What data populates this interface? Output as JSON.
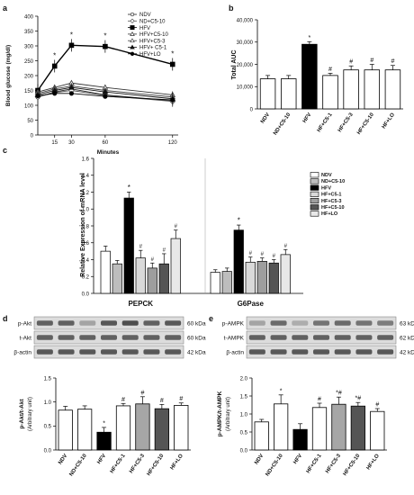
{
  "panel_letters": [
    "a",
    "b",
    "c",
    "d",
    "e"
  ],
  "markers": {
    "star": "*",
    "hash": "#"
  },
  "chart_data": [
    {
      "id": "a",
      "type": "line",
      "xlabel": "Minutes",
      "ylabel": "Blood  glucose  (mg/dl)",
      "x": [
        0,
        15,
        30,
        60,
        120
      ],
      "xticks": [
        "15",
        "30",
        "60",
        "120"
      ],
      "ylim": [
        0,
        400
      ],
      "yticks": [
        "0",
        "50",
        "100",
        "150",
        "200",
        "250",
        "300",
        "350",
        "400"
      ],
      "series": [
        {
          "name": "NDV",
          "values": [
            128,
            145,
            155,
            135,
            115
          ],
          "marker": "circle-open",
          "color": "#222222"
        },
        {
          "name": "ND+C5-10",
          "values": [
            128,
            143,
            150,
            133,
            113
          ],
          "marker": "diamond-open",
          "color": "#555555"
        },
        {
          "name": "HFV",
          "values": [
            150,
            232,
            302,
            298,
            238
          ],
          "marker": "square-filled",
          "color": "#000000",
          "stars": [
            1,
            2,
            3,
            4
          ]
        },
        {
          "name": "HFV+C5-10",
          "values": [
            145,
            160,
            175,
            160,
            135
          ],
          "marker": "triangle-open",
          "color": "#333333"
        },
        {
          "name": "HFV+C5-3",
          "values": [
            140,
            155,
            165,
            150,
            128
          ],
          "marker": "triangle-open",
          "color": "#444444"
        },
        {
          "name": "HFV+ C5-1",
          "values": [
            135,
            150,
            160,
            145,
            122
          ],
          "marker": "triangle-filled",
          "color": "#111111"
        },
        {
          "name": "HFV+LO",
          "values": [
            132,
            140,
            140,
            130,
            118
          ],
          "marker": "circle-filled",
          "color": "#000000"
        }
      ]
    },
    {
      "id": "b",
      "type": "bar",
      "ylabel": "Total AUC",
      "ylim": [
        0,
        40000
      ],
      "yticks": [
        "0",
        "10,000",
        "20,000",
        "30,000",
        "40,000"
      ],
      "categories": [
        "NDV",
        "ND+C5-10",
        "HFV",
        "HF+C5-1",
        "HF+C5-3",
        "HF+C5-10",
        "HF+LO"
      ],
      "values": [
        13500,
        13500,
        29000,
        15000,
        17500,
        17500,
        17500
      ],
      "errors": [
        1500,
        1500,
        1200,
        1000,
        1800,
        2500,
        2000
      ],
      "fills": [
        "#ffffff",
        "#ffffff",
        "#000000",
        "#ffffff",
        "#ffffff",
        "#ffffff",
        "#ffffff"
      ],
      "marks": [
        "",
        "",
        "*",
        "#",
        "#",
        "#",
        "#"
      ]
    },
    {
      "id": "c",
      "type": "bar",
      "ylabel": "Relative Expression of mRNA level",
      "ylim": [
        0,
        1.6
      ],
      "yticks": [
        "0.0",
        "0.2",
        "0.4",
        "0.6",
        "0.8",
        "1.0",
        "1.2",
        "1.4",
        "1.6"
      ],
      "groups": [
        "PEPCK",
        "G6Pase"
      ],
      "legend": [
        "NDV",
        "ND+C5-10",
        "HFV",
        "HF+C5-1",
        "HF+C5-3",
        "HF+C5-10",
        "HF+LO"
      ],
      "fills": [
        "#ffffff",
        "#bdbdbd",
        "#000000",
        "#d9d9d9",
        "#9e9e9e",
        "#555555",
        "#e8e8e8"
      ],
      "series": [
        {
          "name": "NDV",
          "values": [
            0.5,
            0.25
          ],
          "errors": [
            0.06,
            0.03
          ],
          "marks": [
            "",
            ""
          ]
        },
        {
          "name": "ND+C5-10",
          "values": [
            0.35,
            0.26
          ],
          "errors": [
            0.04,
            0.04
          ],
          "marks": [
            "",
            ""
          ]
        },
        {
          "name": "HFV",
          "values": [
            1.13,
            0.75
          ],
          "errors": [
            0.07,
            0.06
          ],
          "marks": [
            "*",
            "*"
          ]
        },
        {
          "name": "HF+C5-1",
          "values": [
            0.42,
            0.37
          ],
          "errors": [
            0.09,
            0.06
          ],
          "marks": [
            "#",
            "#"
          ]
        },
        {
          "name": "HF+C5-3",
          "values": [
            0.3,
            0.38
          ],
          "errors": [
            0.06,
            0.04
          ],
          "marks": [
            "#",
            "#"
          ]
        },
        {
          "name": "HF+C5-10",
          "values": [
            0.35,
            0.36
          ],
          "errors": [
            0.12,
            0.04
          ],
          "marks": [
            "#",
            "#"
          ]
        },
        {
          "name": "HF+LO",
          "values": [
            0.65,
            0.46
          ],
          "errors": [
            0.1,
            0.06
          ],
          "marks": [
            "#",
            "#"
          ]
        }
      ]
    },
    {
      "id": "d",
      "type": "bar",
      "ylabel": "p-Akt/t-Akt",
      "ylabel2": "(Arbitrary unit)",
      "ylim": [
        0,
        1.5
      ],
      "yticks": [
        "0.0",
        "0.5",
        "1.0",
        "1.5"
      ],
      "categories": [
        "NDV",
        "ND+C5-10",
        "HFV",
        "HF+C5-1",
        "HF+C5-3",
        "HF+C5-10",
        "HF+LO"
      ],
      "values": [
        0.83,
        0.85,
        0.37,
        0.92,
        0.96,
        0.86,
        0.93
      ],
      "errors": [
        0.08,
        0.07,
        0.1,
        0.05,
        0.15,
        0.09,
        0.05
      ],
      "fills": [
        "#ffffff",
        "#ffffff",
        "#000000",
        "#ffffff",
        "#a6a6a6",
        "#555555",
        "#ffffff"
      ],
      "marks": [
        "",
        "",
        "*",
        "#",
        "#",
        "#",
        "#"
      ],
      "blot": {
        "rows": [
          "p-Akt",
          "t-Akt",
          "β-actin"
        ],
        "sizes": [
          "60 kDa",
          "60 kDa",
          "42 kDa"
        ]
      }
    },
    {
      "id": "e",
      "type": "bar",
      "ylabel": "p-AMPK/t-AMPK",
      "ylabel2": "(Arbitrary unit)",
      "ylim": [
        0,
        2.0
      ],
      "yticks": [
        "0.0",
        "0.5",
        "1.0",
        "1.5",
        "2.0"
      ],
      "categories": [
        "NDV",
        "ND+C5-10",
        "HFV",
        "HF+C5-1",
        "HF+C5-3",
        "HF+C5-10",
        "HF+LO"
      ],
      "values": [
        0.78,
        1.28,
        0.57,
        1.18,
        1.27,
        1.22,
        1.07
      ],
      "errors": [
        0.07,
        0.25,
        0.16,
        0.12,
        0.2,
        0.1,
        0.08
      ],
      "fills": [
        "#ffffff",
        "#ffffff",
        "#000000",
        "#ffffff",
        "#a6a6a6",
        "#555555",
        "#ffffff"
      ],
      "marks": [
        "",
        "*",
        "",
        "#",
        "*#",
        "*#",
        "#"
      ],
      "blot": {
        "rows": [
          "p-AMPK",
          "t-AMPK",
          "β-actin"
        ],
        "sizes": [
          "63 kDa",
          "62 kDa",
          "42 kDa"
        ]
      }
    }
  ]
}
